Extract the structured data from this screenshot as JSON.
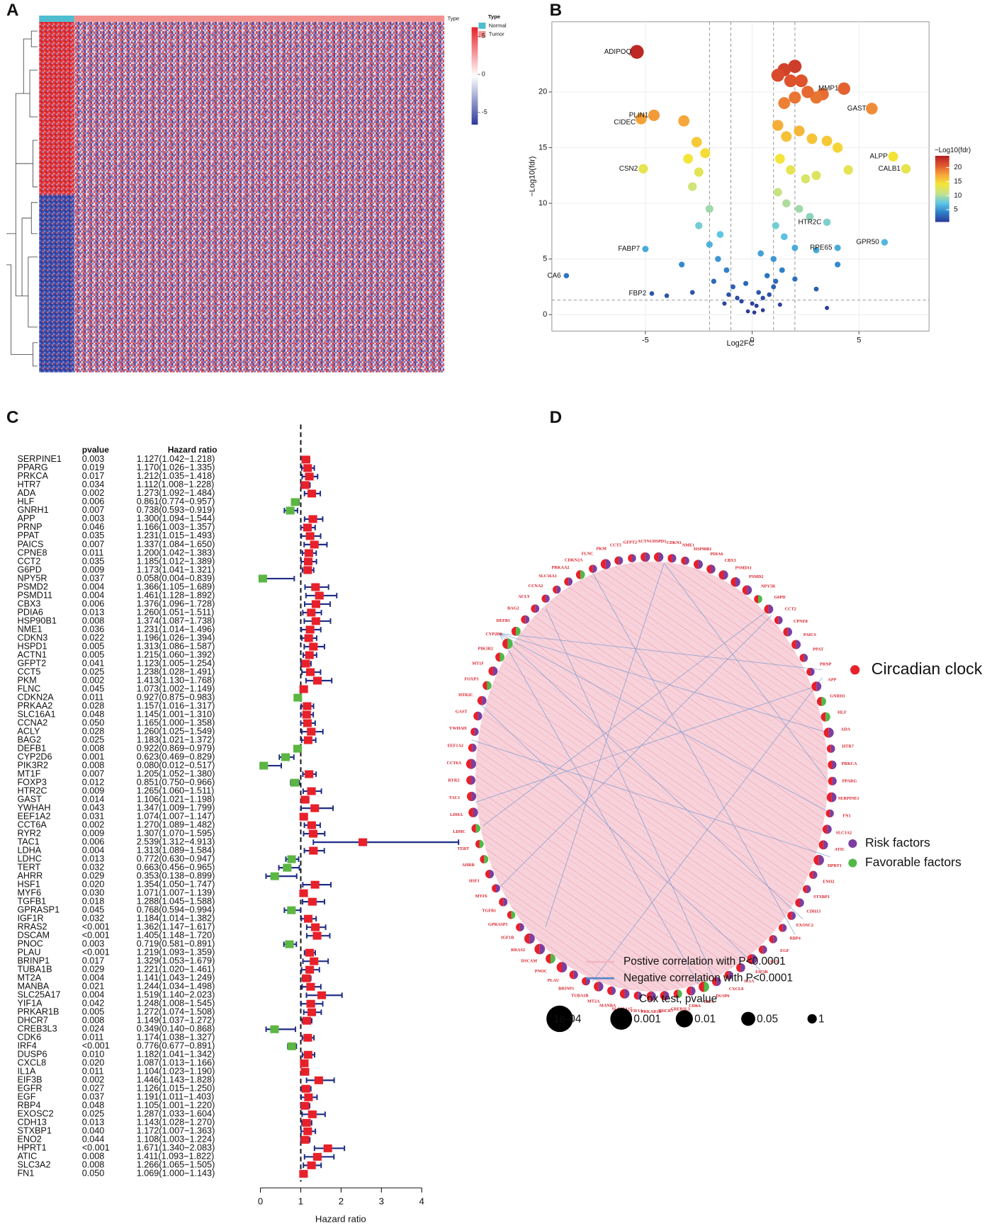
{
  "panel_labels": [
    "A",
    "B",
    "C",
    "D"
  ],
  "chart_data": [
    {
      "type": "heatmap",
      "annotation_title": "Type",
      "legend_title": "Type",
      "groups": [
        "Normal",
        "Tumor"
      ],
      "group_colors": [
        "#4dbdd0",
        "#f2928f"
      ],
      "colorbar": {
        "ticks": [
          5,
          0,
          -5
        ],
        "lim": [
          -6.6,
          6.2
        ],
        "colors": [
          "#2d3a9a",
          "#ffffff",
          "#e8202a"
        ]
      }
    },
    {
      "type": "scatter",
      "xlabel": "Log2FC",
      "ylabel": "−Log10(fdr)",
      "xlim": [
        -9.38,
        8.28
      ],
      "ylim": [
        -1.47,
        26.3
      ],
      "xticks": [
        -5,
        0,
        5
      ],
      "yticks": [
        0,
        5,
        10,
        15,
        20
      ],
      "grid": true,
      "vlines": [
        -2,
        -1,
        1,
        2
      ],
      "hline": 1.3,
      "colorbar": {
        "title": "−Log10(fdr)",
        "lim": [
          0.6,
          24.2
        ],
        "ticks": [
          5,
          10,
          15,
          20
        ],
        "colors": [
          "#2b3a98",
          "#2d7fc9",
          "#5fc8e6",
          "#c4e28a",
          "#f4e537",
          "#f6a53a",
          "#e0552e",
          "#b51e22"
        ]
      },
      "x": [
        -5.4,
        4.3,
        5.6,
        -4.6,
        -5.2,
        -5.1,
        6.6,
        7.2,
        3.5,
        4.0,
        6.2,
        -5.0,
        -8.7,
        -4.7,
        1.2,
        1.5,
        1.8,
        2.0,
        2.3,
        2.6,
        3.0,
        3.3,
        2.0,
        1.5,
        1.2,
        1.6,
        2.2,
        2.8,
        3.5,
        4.0,
        1.3,
        1.8,
        2.5,
        3.0,
        4.5,
        1.2,
        1.6,
        2.2,
        2.7,
        1.1,
        1.5,
        2.0,
        3.0,
        4.0,
        1.0,
        1.4,
        2.0,
        3.0,
        1.0,
        0.5,
        0.2,
        0.8,
        1.3,
        3.5,
        -0.5,
        -0.9,
        -1.2,
        -1.6,
        -2.0,
        -1.5,
        -2.5,
        -2.0,
        -2.8,
        -3.0,
        -2.2,
        -2.6,
        -3.2,
        -2.5,
        -1.8,
        -3.3,
        -2.8,
        -4.0,
        -1.3,
        -0.2,
        0.1,
        0.5,
        0.3,
        -0.3,
        0.7,
        -0.7,
        1.1,
        -1.1,
        0.0,
        0.4
      ],
      "y": [
        23.6,
        20.3,
        18.5,
        17.9,
        17.6,
        13.1,
        14.2,
        13.1,
        8.3,
        6.0,
        6.5,
        5.9,
        3.5,
        1.9,
        21.5,
        22,
        21,
        22.3,
        21,
        20,
        19.5,
        19.8,
        19.5,
        19,
        17,
        16,
        16.5,
        15.8,
        15.6,
        15,
        14,
        13,
        12.2,
        12.5,
        13,
        11,
        10,
        9.5,
        8.8,
        8,
        7,
        6,
        5.8,
        4.5,
        5,
        4,
        3.2,
        2.3,
        2.5,
        1.5,
        0.8,
        1.8,
        0.9,
        0.6,
        1.2,
        2.5,
        4,
        5,
        6.3,
        7.2,
        8,
        9.5,
        11.5,
        14,
        14.5,
        15.5,
        17.4,
        12.8,
        3,
        4.5,
        2,
        1.7,
        1,
        0.3,
        0.2,
        0.4,
        2,
        2.8,
        3.5,
        1.5,
        3,
        1.8,
        1.0,
        5.5
      ],
      "labels": [
        "ADIPOQ",
        "MMP1",
        "GAST",
        "PLIN1",
        "CIDEC",
        "CSN2",
        "ALPP",
        "CALB1",
        "HTR2C",
        "RPE65",
        "GPR50",
        "FABP7",
        "CA6",
        "FBP2",
        null,
        null,
        null,
        null,
        null,
        null,
        null,
        null,
        null,
        null,
        null,
        null,
        null,
        null,
        null,
        null,
        null,
        null,
        null,
        null,
        null,
        null,
        null,
        null,
        null,
        null,
        null,
        null,
        null,
        null,
        null,
        null,
        null,
        null,
        null,
        null,
        null,
        null,
        null,
        null,
        null,
        null,
        null,
        null,
        null,
        null,
        null,
        null,
        null,
        null,
        null,
        null,
        null,
        null,
        null,
        null,
        null,
        null,
        null,
        null,
        null,
        null,
        null,
        null,
        null,
        null,
        null,
        null,
        null,
        null
      ]
    },
    {
      "type": "forest",
      "headers": [
        "pvalue",
        "Hazard ratio"
      ],
      "xlabel": "Hazard ratio",
      "xlim": [
        0,
        4
      ],
      "xticks": [
        0,
        1,
        2,
        3,
        4
      ],
      "reference": 1,
      "risk_color": "#e8202a",
      "favorable_color": "#5bb642",
      "bar_color": "#1f2d86",
      "genes": [
        "SERPINE1",
        "PPARG",
        "PRKCA",
        "HTR7",
        "ADA",
        "HLF",
        "GNRH1",
        "APP",
        "PRNP",
        "PPAT",
        "PAICS",
        "CPNE8",
        "CCT2",
        "G6PD",
        "NPY5R",
        "PSMD2",
        "PSMD11",
        "CBX3",
        "PDIA6",
        "HSP90B1",
        "NME1",
        "CDKN3",
        "HSPD1",
        "ACTN1",
        "GFPT2",
        "CCT5",
        "PKM",
        "FLNC",
        "CDKN2A",
        "PRKAA2",
        "SLC16A1",
        "CCNA2",
        "ACLY",
        "BAG2",
        "DEFB1",
        "CYP2D6",
        "PIK3R2",
        "MT1F",
        "FOXP3",
        "HTR2C",
        "GAST",
        "YWHAH",
        "EEF1A2",
        "CCT6A",
        "RYR2",
        "TAC1",
        "LDHA",
        "LDHC",
        "TERT",
        "AHRR",
        "HSF1",
        "MYF6",
        "TGFB1",
        "GPRASP1",
        "IGF1R",
        "RRAS2",
        "DSCAM",
        "PNOC",
        "PLAU",
        "BRINP1",
        "TUBA1B",
        "MT2A",
        "MANBA",
        "SLC25A17",
        "YIF1A",
        "PRKAR1B",
        "DHCR7",
        "CREB3L3",
        "CDK6",
        "IRF4",
        "DUSP6",
        "CXCL8",
        "IL1A",
        "EIF3B",
        "EGFR",
        "EGF",
        "RBP4",
        "EXOSC2",
        "CDH13",
        "STXBP1",
        "ENO2",
        "HPRT1",
        "ATIC",
        "SLC3A2",
        "FN1"
      ],
      "pvalues": [
        "0.003",
        "0.019",
        "0.017",
        "0.034",
        "0.002",
        "0.006",
        "0.007",
        "0.003",
        "0.046",
        "0.035",
        "0.007",
        "0.011",
        "0.035",
        "0.009",
        "0.037",
        "0.004",
        "0.004",
        "0.006",
        "0.013",
        "0.008",
        "0.036",
        "0.022",
        "0.005",
        "0.005",
        "0.041",
        "0.025",
        "0.002",
        "0.045",
        "0.011",
        "0.028",
        "0.048",
        "0.050",
        "0.028",
        "0.025",
        "0.008",
        "0.001",
        "0.008",
        "0.007",
        "0.012",
        "0.009",
        "0.014",
        "0.043",
        "0.031",
        "0.002",
        "0.009",
        "0.006",
        "0.004",
        "0.013",
        "0.032",
        "0.029",
        "0.020",
        "0.030",
        "0.018",
        "0.045",
        "0.032",
        "<0.001",
        "<0.001",
        "0.003",
        "<0.001",
        "0.017",
        "0.029",
        "0.004",
        "0.021",
        "0.004",
        "0.042",
        "0.005",
        "0.008",
        "0.024",
        "0.011",
        "<0.001",
        "0.010",
        "0.020",
        "0.011",
        "0.002",
        "0.027",
        "0.037",
        "0.048",
        "0.025",
        "0.013",
        "0.040",
        "0.044",
        "<0.001",
        "0.008",
        "0.008",
        "0.050"
      ],
      "hr": [
        1.127,
        1.17,
        1.212,
        1.112,
        1.273,
        0.861,
        0.738,
        1.3,
        1.166,
        1.231,
        1.337,
        1.2,
        1.185,
        1.173,
        0.058,
        1.366,
        1.461,
        1.376,
        1.26,
        1.374,
        1.231,
        1.196,
        1.313,
        1.215,
        1.123,
        1.238,
        1.413,
        1.073,
        0.927,
        1.157,
        1.145,
        1.165,
        1.26,
        1.183,
        0.922,
        0.623,
        0.08,
        1.205,
        0.851,
        1.265,
        1.106,
        1.347,
        1.074,
        1.27,
        1.307,
        2.539,
        1.313,
        0.772,
        0.663,
        0.353,
        1.354,
        1.071,
        1.288,
        0.768,
        1.184,
        1.362,
        1.405,
        0.719,
        1.219,
        1.329,
        1.221,
        1.141,
        1.244,
        1.519,
        1.248,
        1.272,
        1.149,
        0.349,
        1.174,
        0.776,
        1.182,
        1.087,
        1.104,
        1.446,
        1.126,
        1.191,
        1.105,
        1.287,
        1.143,
        1.172,
        1.108,
        1.671,
        1.411,
        1.266,
        1.069
      ],
      "lower": [
        1.042,
        1.026,
        1.035,
        1.008,
        1.092,
        0.774,
        0.593,
        1.094,
        1.003,
        1.015,
        1.084,
        1.042,
        1.012,
        1.041,
        0.004,
        1.105,
        1.128,
        1.096,
        1.051,
        1.087,
        1.014,
        1.026,
        1.086,
        1.06,
        1.005,
        1.028,
        1.13,
        1.002,
        0.875,
        1.016,
        1.001,
        1.0,
        1.025,
        1.021,
        0.869,
        0.469,
        0.012,
        1.052,
        0.75,
        1.06,
        1.021,
        1.009,
        1.007,
        1.089,
        1.07,
        1.312,
        1.089,
        0.63,
        0.456,
        0.138,
        1.05,
        1.007,
        1.045,
        0.594,
        1.014,
        1.147,
        1.148,
        0.581,
        1.093,
        1.053,
        1.02,
        1.043,
        1.034,
        1.14,
        1.008,
        1.074,
        1.037,
        0.14,
        1.038,
        0.677,
        1.041,
        1.013,
        1.023,
        1.143,
        1.015,
        1.011,
        1.001,
        1.033,
        1.028,
        1.007,
        1.003,
        1.34,
        1.093,
        1.065,
        1.0
      ],
      "upper": [
        1.218,
        1.335,
        1.418,
        1.228,
        1.484,
        0.957,
        0.919,
        1.544,
        1.357,
        1.493,
        1.65,
        1.383,
        1.389,
        1.321,
        0.839,
        1.689,
        1.892,
        1.728,
        1.511,
        1.738,
        1.496,
        1.394,
        1.587,
        1.392,
        1.254,
        1.491,
        1.768,
        1.149,
        0.983,
        1.317,
        1.31,
        1.358,
        1.549,
        1.372,
        0.979,
        0.829,
        0.517,
        1.38,
        0.966,
        1.511,
        1.198,
        1.799,
        1.147,
        1.482,
        1.595,
        4.913,
        1.584,
        0.947,
        0.965,
        0.899,
        1.747,
        1.139,
        1.588,
        0.994,
        1.382,
        1.617,
        1.72,
        0.891,
        1.359,
        1.679,
        1.461,
        1.249,
        1.498,
        2.023,
        1.545,
        1.508,
        1.272,
        0.868,
        1.327,
        0.891,
        1.342,
        1.166,
        1.19,
        1.828,
        1.25,
        1.403,
        1.22,
        1.604,
        1.27,
        1.363,
        1.224,
        2.083,
        1.822,
        1.505,
        1.143
      ],
      "hr_labels": [
        "1.127(1.042−1.218)",
        "1.170(1.026−1.335)",
        "1.212(1.035−1.418)",
        "1.112(1.008−1.228)",
        "1.273(1.092−1.484)",
        "0.861(0.774−0.957)",
        "0.738(0.593−0.919)",
        "1.300(1.094−1.544)",
        "1.166(1.003−1.357)",
        "1.231(1.015−1.493)",
        "1.337(1.084−1.650)",
        "1.200(1.042−1.383)",
        "1.185(1.012−1.389)",
        "1.173(1.041−1.321)",
        "0.058(0.004−0.839)",
        "1.366(1.105−1.689)",
        "1.461(1.128−1.892)",
        "1.376(1.096−1.728)",
        "1.260(1.051−1.511)",
        "1.374(1.087−1.738)",
        "1.231(1.014−1.496)",
        "1.196(1.026−1.394)",
        "1.313(1.086−1.587)",
        "1.215(1.060−1.392)",
        "1.123(1.005−1.254)",
        "1.238(1.028−1.491)",
        "1.413(1.130−1.768)",
        "1.073(1.002−1.149)",
        "0.927(0.875−0.983)",
        "1.157(1.016−1.317)",
        "1.145(1.001−1.310)",
        "1.165(1.000−1.358)",
        "1.260(1.025−1.549)",
        "1.183(1.021−1.372)",
        "0.922(0.869−0.979)",
        "0.623(0.469−0.829)",
        "0.080(0.012−0.517)",
        "1.205(1.052−1.380)",
        "0.851(0.750−0.966)",
        "1.265(1.060−1.511)",
        "1.106(1.021−1.198)",
        "1.347(1.009−1.799)",
        "1.074(1.007−1.147)",
        "1.270(1.089−1.482)",
        "1.307(1.070−1.595)",
        "2.539(1.312−4.913)",
        "1.313(1.089−1.584)",
        "0.772(0.630−0.947)",
        "0.663(0.456−0.965)",
        "0.353(0.138−0.899)",
        "1.354(1.050−1.747)",
        "1.071(1.007−1.139)",
        "1.288(1.045−1.588)",
        "0.768(0.594−0.994)",
        "1.184(1.014−1.382)",
        "1.362(1.147−1.617)",
        "1.405(1.148−1.720)",
        "0.719(0.581−0.891)",
        "1.219(1.093−1.359)",
        "1.329(1.053−1.679)",
        "1.221(1.020−1.461)",
        "1.141(1.043−1.249)",
        "1.244(1.034−1.498)",
        "1.519(1.140−2.023)",
        "1.248(1.008−1.545)",
        "1.272(1.074−1.508)",
        "1.149(1.037−1.272)",
        "0.349(0.140−0.868)",
        "1.174(1.038−1.327)",
        "0.776(0.677−0.891)",
        "1.182(1.041−1.342)",
        "1.087(1.013−1.166)",
        "1.104(1.023−1.190)",
        "1.446(1.143−1.828)",
        "1.126(1.015−1.250)",
        "1.191(1.011−1.403)",
        "1.105(1.001−1.220)",
        "1.287(1.033−1.604)",
        "1.143(1.028−1.270)",
        "1.172(1.007−1.363)",
        "1.108(1.003−1.224)",
        "1.671(1.340−2.083)",
        "1.411(1.093−1.822)",
        "1.266(1.065−1.505)",
        "1.069(1.000−1.143)"
      ]
    },
    {
      "type": "network",
      "circadian_color": "#e8202a",
      "risk_color": "#7b3fa0",
      "favorable_color": "#52b848",
      "positive_color": "#f4b6c4",
      "negative_color": "#5b86c9",
      "legend": {
        "group": "Circadian clock",
        "risk": "Risk factors",
        "favorable": "Favorable factors",
        "positive": "Postive correlation with P<0.0001",
        "negative": "Negative correlation with P<0.0001",
        "size_title": "Cox test, pvalue",
        "size_labels": [
          "1e-04",
          "0.001",
          "0.01",
          "0.05",
          "1"
        ]
      }
    }
  ]
}
